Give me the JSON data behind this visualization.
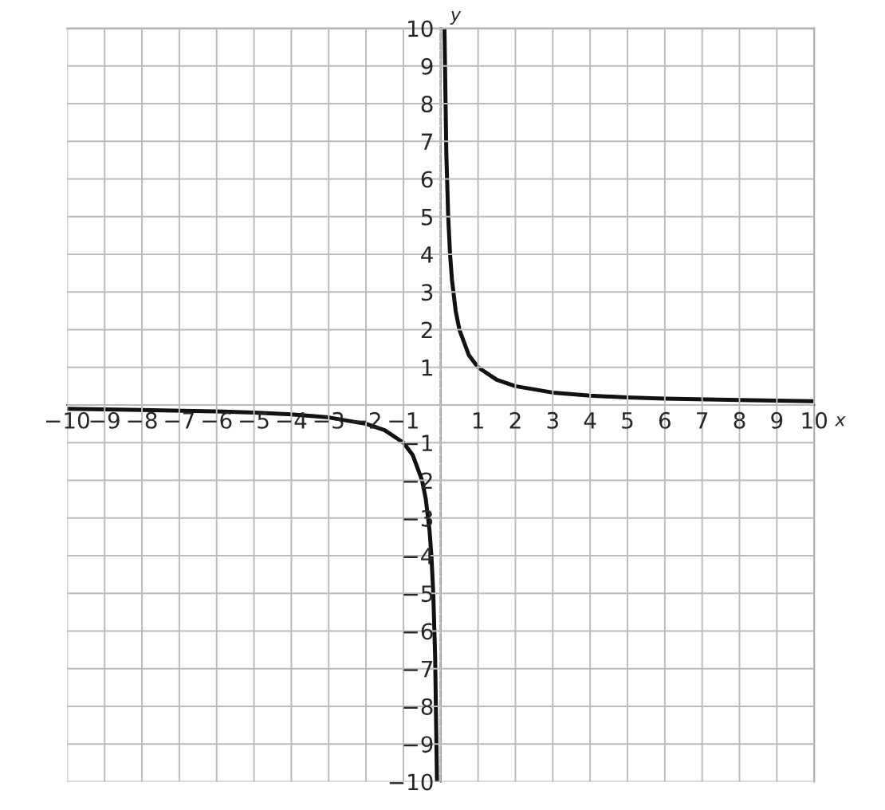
{
  "chart_data": {
    "type": "line",
    "xlabel": "x",
    "ylabel": "y",
    "x": [
      -10,
      -8,
      -6,
      -5,
      -4,
      -3,
      -2,
      -1.5,
      -1,
      -0.75,
      -0.5,
      -0.4,
      -0.3,
      -0.25,
      -0.2,
      -0.15,
      -0.1,
      0,
      0.1,
      0.15,
      0.2,
      0.25,
      0.3,
      0.4,
      0.5,
      0.75,
      1,
      1.5,
      2,
      3,
      4,
      5,
      6,
      8,
      10
    ],
    "series": [
      {
        "color": "#111111",
        "values": [
          -0.1,
          -0.13,
          -0.17,
          -0.2,
          -0.25,
          -0.33,
          -0.5,
          -0.67,
          -1,
          -1.33,
          -2,
          -2.5,
          -3.33,
          -4,
          -5,
          -6.67,
          -10,
          null,
          10,
          6.67,
          5,
          4,
          3.33,
          2.5,
          2,
          1.33,
          1,
          0.67,
          0.5,
          0.33,
          0.25,
          0.2,
          0.17,
          0.13,
          0.1
        ]
      }
    ],
    "xlim": [
      -10,
      10
    ],
    "ylim": [
      -10,
      10
    ],
    "xticks": [
      -10,
      -9,
      -8,
      -7,
      -6,
      -5,
      -4,
      -3,
      -2,
      -1,
      {
        "value": 0,
        "label": null
      },
      1,
      2,
      3,
      4,
      5,
      6,
      7,
      8,
      9,
      10
    ],
    "yticks": [
      -10,
      -9,
      -8,
      -7,
      -6,
      -5,
      -4,
      -3,
      -2,
      -1,
      {
        "value": 0,
        "label": null
      },
      1,
      2,
      3,
      4,
      5,
      6,
      7,
      8,
      9,
      10
    ],
    "grid": true,
    "marker": "none",
    "line_style": "solid",
    "legend": false
  }
}
